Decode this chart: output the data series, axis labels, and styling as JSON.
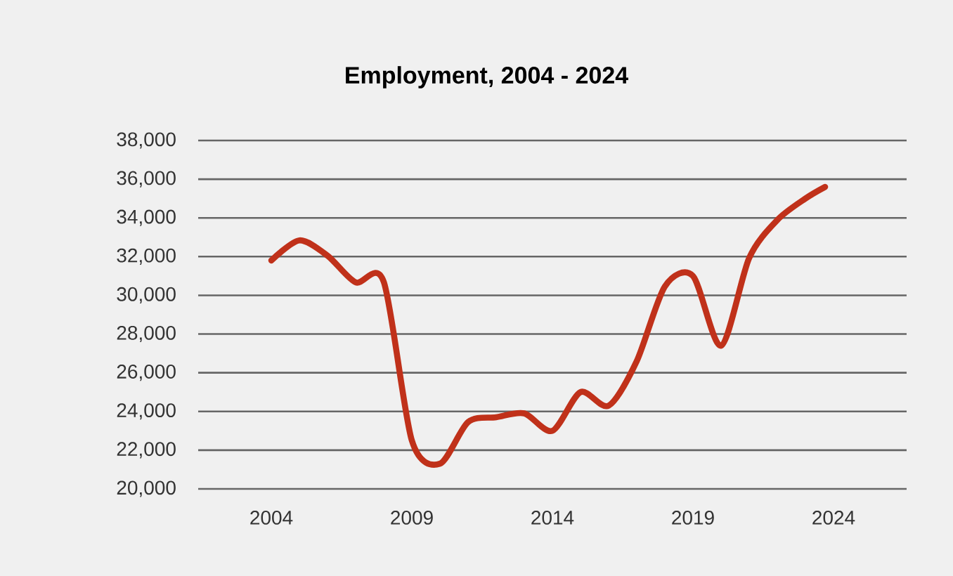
{
  "chart_data": {
    "type": "line",
    "title": "Employment, 2004 - 2024",
    "x": [
      2004,
      2005,
      2006,
      2007,
      2008,
      2009,
      2010,
      2011,
      2012,
      2013,
      2014,
      2015,
      2016,
      2017,
      2018,
      2019,
      2020,
      2021,
      2022,
      2023,
      2023.7
    ],
    "series": [
      {
        "color": "#c0311a",
        "values": [
          31800,
          32840,
          32050,
          30670,
          30700,
          22500,
          21300,
          23450,
          23700,
          23900,
          23000,
          25000,
          24300,
          26600,
          30460,
          31000,
          27400,
          31930,
          33890,
          35000,
          35600
        ]
      }
    ],
    "xlim": [
      2001.4,
      2026.6
    ],
    "xticks": [
      2004,
      2009,
      2014,
      2019,
      2024
    ],
    "ylim": [
      20000,
      38000
    ],
    "yticks": [
      {
        "value": 20000,
        "label": "20,000"
      },
      {
        "value": 22000,
        "label": "22,000"
      },
      {
        "value": 24000,
        "label": "24,000"
      },
      {
        "value": 26000,
        "label": "26,000"
      },
      {
        "value": 28000,
        "label": "28,000"
      },
      {
        "value": 30000,
        "label": "30,000"
      },
      {
        "value": 32000,
        "label": "32,000"
      },
      {
        "value": 34000,
        "label": "34,000"
      },
      {
        "value": 36000,
        "label": "36,000"
      },
      {
        "value": 38000,
        "label": "38,000"
      }
    ],
    "grid": "y",
    "marker": "none",
    "line_style": "solid"
  }
}
